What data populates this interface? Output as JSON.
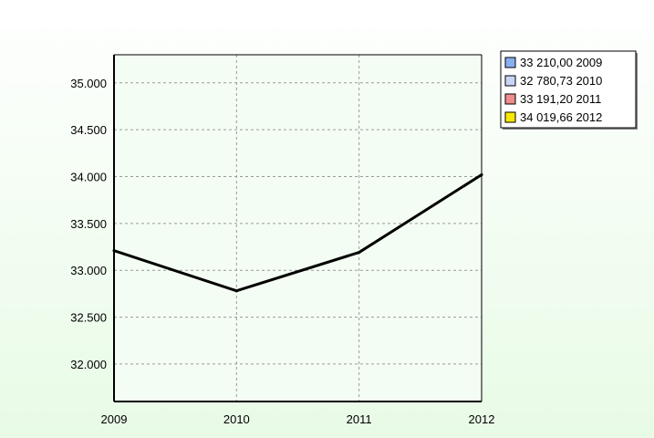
{
  "chart_data": {
    "type": "line",
    "title": "",
    "xlabel": "",
    "ylabel": "",
    "categories": [
      "2009",
      "2010",
      "2011",
      "2012"
    ],
    "series": [
      {
        "values": [
          33210.0,
          32780.73,
          33191.2,
          34019.66
        ]
      }
    ],
    "ylim": [
      31600,
      35300
    ],
    "y_ticks": [
      32000,
      32500,
      33000,
      33500,
      34000,
      34500,
      35000
    ],
    "y_tick_labels": [
      "32.000",
      "32.500",
      "33.000",
      "33.500",
      "34.000",
      "34.500",
      "35.000"
    ],
    "grid": true,
    "legend": {
      "position": "top-right",
      "entries": [
        {
          "label": "33 210,00 2009",
          "color": "#88b0f0"
        },
        {
          "label": "32 780,73 2010",
          "color": "#c8d4f4"
        },
        {
          "label": "33 191,20 2011",
          "color": "#f08c8c"
        },
        {
          "label": "34 019,66 2012",
          "color": "#f8e800"
        }
      ]
    },
    "colors": {
      "background_top": "#ffffff",
      "background_bottom": "#e8fbe6",
      "plot_area": "#f4fdf3",
      "line": "#000000",
      "grid": "#9a9a9a"
    }
  }
}
